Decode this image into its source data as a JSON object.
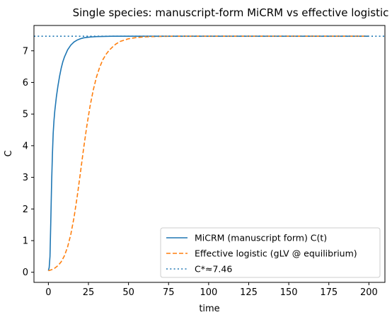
{
  "chart_data": {
    "type": "line",
    "title": "Single species: manuscript-form MiCRM vs effective logistic",
    "xlabel": "time",
    "ylabel": "C",
    "xlim": [
      -9,
      210
    ],
    "ylim": [
      -0.32,
      7.8
    ],
    "xticks": [
      0,
      25,
      50,
      75,
      100,
      125,
      150,
      175,
      200
    ],
    "yticks": [
      0,
      1,
      2,
      3,
      4,
      5,
      6,
      7
    ],
    "grid": false,
    "legend_position": "lower-right",
    "series": [
      {
        "name": "MiCRM (manuscript form) C(t)",
        "style": "solid",
        "color": "#1f77b4",
        "x": [
          0,
          0.5,
          1,
          1.5,
          2,
          2.5,
          3,
          3.5,
          4,
          5,
          6,
          7,
          8,
          9,
          10,
          12,
          14,
          16,
          18,
          20,
          22,
          25,
          30,
          35,
          40,
          50,
          60,
          80,
          100,
          150,
          200
        ],
        "y": [
          0.05,
          0.15,
          0.5,
          1.6,
          2.8,
          3.7,
          4.4,
          4.8,
          5.1,
          5.55,
          5.9,
          6.2,
          6.45,
          6.65,
          6.8,
          7.03,
          7.18,
          7.28,
          7.34,
          7.38,
          7.41,
          7.43,
          7.45,
          7.455,
          7.46,
          7.46,
          7.46,
          7.46,
          7.46,
          7.46,
          7.46
        ]
      },
      {
        "name": "Effective logistic (gLV @ equilibrium)",
        "style": "dashed",
        "color": "#ff7f0e",
        "x": [
          0,
          2,
          4,
          6,
          8,
          10,
          12,
          14,
          16,
          18,
          20,
          22,
          24,
          26,
          28,
          30,
          32,
          34,
          36,
          38,
          40,
          42,
          45,
          50,
          55,
          60,
          65,
          70,
          80,
          100,
          150,
          200
        ],
        "y": [
          0.05,
          0.08,
          0.13,
          0.21,
          0.33,
          0.52,
          0.8,
          1.2,
          1.73,
          2.4,
          3.15,
          3.92,
          4.63,
          5.25,
          5.76,
          6.17,
          6.48,
          6.72,
          6.89,
          7.02,
          7.12,
          7.21,
          7.3,
          7.38,
          7.42,
          7.44,
          7.45,
          7.455,
          7.46,
          7.46,
          7.46,
          7.46
        ]
      },
      {
        "name": "C*≈7.46",
        "style": "dotted",
        "color": "#1f77b4",
        "hline": 7.46
      }
    ]
  }
}
